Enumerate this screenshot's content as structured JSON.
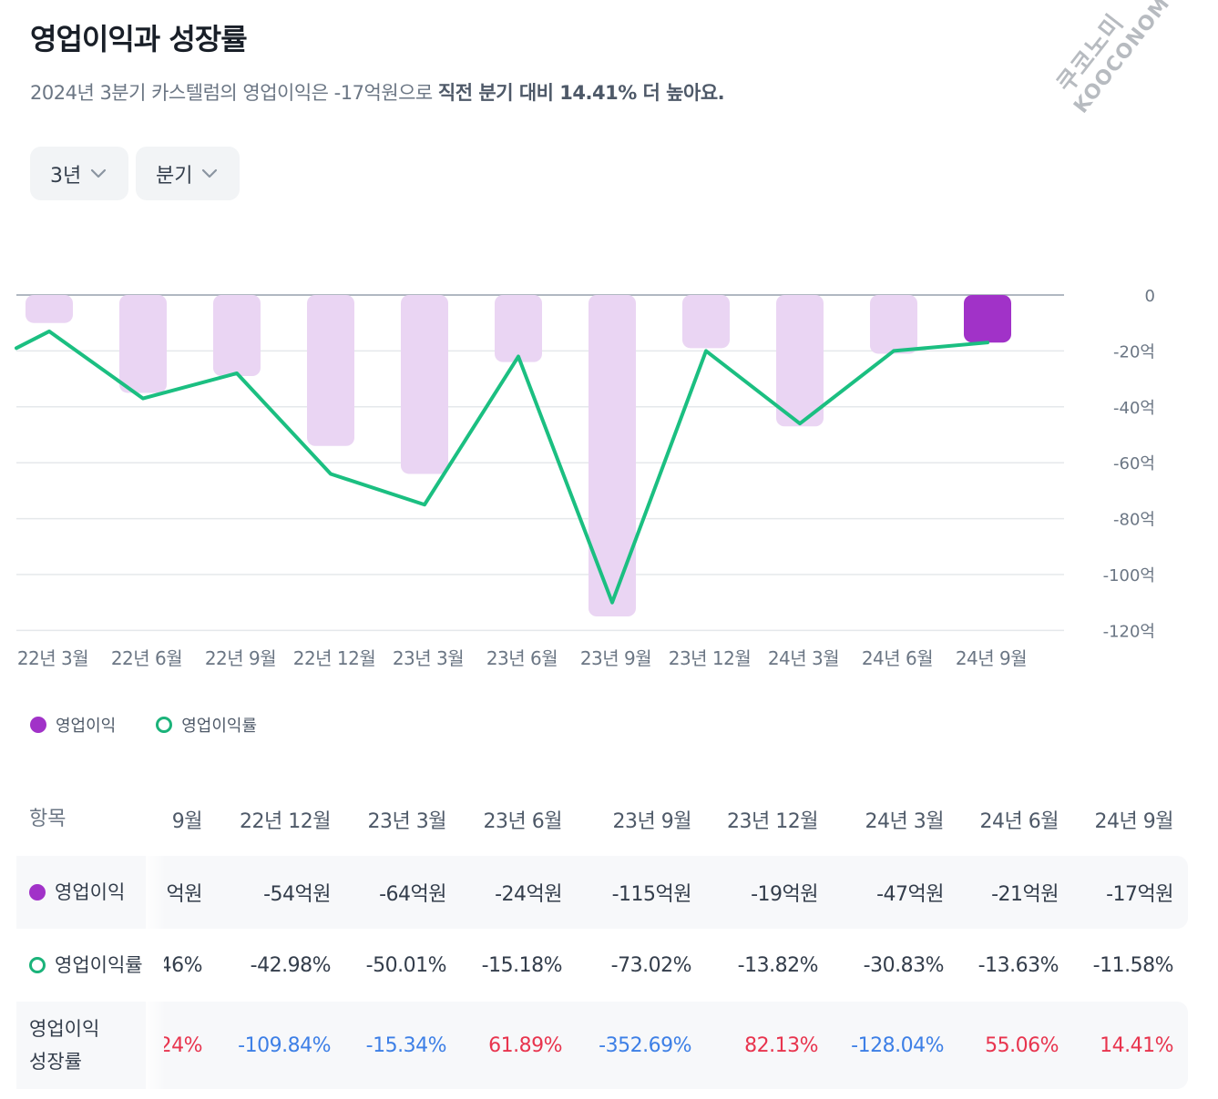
{
  "header": {
    "title": "영업이익과 성장률",
    "subtitle_plain": "2024년 3분기 카스텔럼의 영업이익은 -17억원으로 ",
    "subtitle_bold": "직전 분기 대비 14.41% 더 높아요."
  },
  "watermark": {
    "line1": "쿠코노미",
    "line2": "KOOCONOMY"
  },
  "filters": [
    {
      "label": "3년",
      "icon": "chevron-down-icon"
    },
    {
      "label": "분기",
      "icon": "chevron-down-icon"
    }
  ],
  "chart_data": {
    "type": "bar",
    "categories": [
      "22년 3월",
      "22년 6월",
      "22년 9월",
      "22년 12월",
      "23년 3월",
      "23년 6월",
      "23년 9월",
      "23년 12월",
      "24년 3월",
      "24년 6월",
      "24년 9월"
    ],
    "series": [
      {
        "name": "영업이익",
        "type": "bar",
        "values": [
          -10,
          -35,
          -29,
          -54,
          -64,
          -24,
          -115,
          -19,
          -47,
          -21,
          -17
        ]
      },
      {
        "name": "영업이익률",
        "type": "line",
        "values": [
          -13,
          -37,
          -28,
          -64,
          -75,
          -22,
          -110,
          -20,
          -46,
          -20,
          -17
        ]
      }
    ],
    "y_ticks": [
      "0",
      "-20억",
      "-40억",
      "-60억",
      "-80억",
      "-100억",
      "-120억"
    ],
    "ylim": [
      -120,
      0
    ],
    "grid": true,
    "legend_position": "bottom-left",
    "colors": {
      "bar": "#ead5f3",
      "bar_highlight": "#a132c8",
      "line": "#1bbf81",
      "grid": "#e5e8eb",
      "axis": "#b0b8c1"
    }
  },
  "legend": [
    {
      "label": "영업이익",
      "style": "filled",
      "color": "#a132c8"
    },
    {
      "label": "영업이익률",
      "style": "ring",
      "color": "#1bb37a"
    }
  ],
  "table": {
    "header_label": "항목",
    "columns": [
      "9월",
      "22년 12월",
      "23년 3월",
      "23년 6월",
      "23년 9월",
      "23년 12월",
      "24년 3월",
      "24년 6월",
      "24년 9월"
    ],
    "rows": [
      {
        "label": "영업이익",
        "marker": "filled",
        "values": [
          "억원",
          "-54억원",
          "-64억원",
          "-24억원",
          "-115억원",
          "-19억원",
          "-47억원",
          "-21억원",
          "-17억원"
        ],
        "tones": [
          "n",
          "n",
          "n",
          "n",
          "n",
          "n",
          "n",
          "n",
          "n"
        ]
      },
      {
        "label": "영업이익률",
        "marker": "ring",
        "values": [
          "46%",
          "-42.98%",
          "-50.01%",
          "-15.18%",
          "-73.02%",
          "-13.82%",
          "-30.83%",
          "-13.63%",
          "-11.58%"
        ],
        "tones": [
          "n",
          "n",
          "n",
          "n",
          "n",
          "n",
          "n",
          "n",
          "n"
        ]
      },
      {
        "label_line1": "영업이익",
        "label_line2": "성장률",
        "marker": "none",
        "values": [
          "24%",
          "-109.84%",
          "-15.34%",
          "61.89%",
          "-352.69%",
          "82.13%",
          "-128.04%",
          "55.06%",
          "14.41%"
        ],
        "tones": [
          "pos",
          "neg",
          "neg",
          "pos",
          "neg",
          "pos",
          "neg",
          "pos",
          "pos"
        ]
      }
    ]
  }
}
